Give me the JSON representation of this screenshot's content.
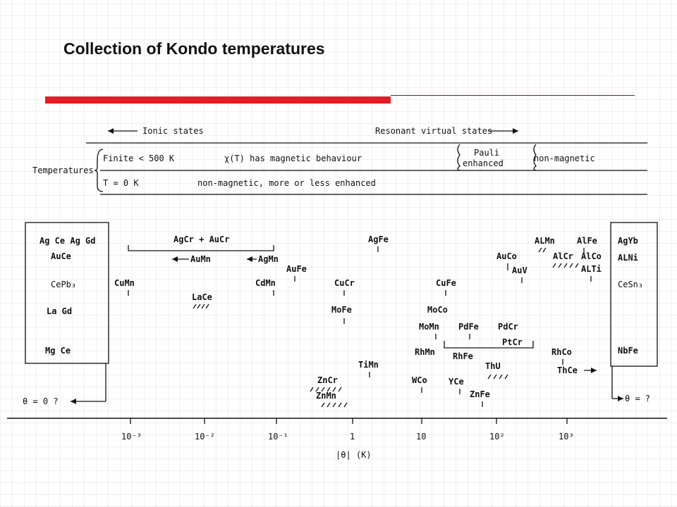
{
  "slide": {
    "title": "Collection of Kondo temperatures",
    "accent_color": "#e31b23"
  },
  "header": {
    "ionic": "Ionic states",
    "resonant": "Resonant virtual states",
    "temperatures": "Temperatures",
    "finite": "Finite < 500 K",
    "chi": "χ(T) has magnetic behaviour",
    "pauli1": "Pauli",
    "pauli2": "enhanced",
    "nonmag": "non-magnetic",
    "t0": "T = 0 K",
    "nonmag2": "non-magnetic, more or less enhanced"
  },
  "left_box": [
    "Ag Ce  Ag Gd",
    "AuCe",
    "CePb₃",
    "La Gd",
    "Mg Ce"
  ],
  "right_box": [
    "AgYb",
    "ALNi",
    "CeSn₃",
    "NbFe"
  ],
  "theta_left": "θ = 0  ?",
  "theta_right": "θ = ?",
  "bracket_labels": {
    "agcr_aucr": "AgCr + AuCr",
    "aumn": "AuMn",
    "agmn": "AgMn"
  },
  "alloys": [
    "CuMn",
    "LaCe",
    "CdMn",
    "AuFe",
    "CuCr",
    "MoFe",
    "AgFe",
    "CuFe",
    "MoCo",
    "MoMn",
    "PdFe",
    "PdCr",
    "PtCr",
    "RhMn",
    "RhFe",
    "ThU",
    "WCo",
    "YCe",
    "ZnFe",
    "AuCo",
    "AuV",
    "ALMn",
    "AlCr",
    "AlFe",
    "AlCo",
    "ALTi",
    "RhCo",
    "ThCe",
    "ZnCr",
    "ZnMn",
    "TiMn"
  ],
  "axis": {
    "ticks": [
      "10⁻³",
      "10⁻²",
      "10⁻¹",
      "1",
      "10",
      "10²",
      "10³"
    ],
    "label": "|θ| (K)"
  }
}
